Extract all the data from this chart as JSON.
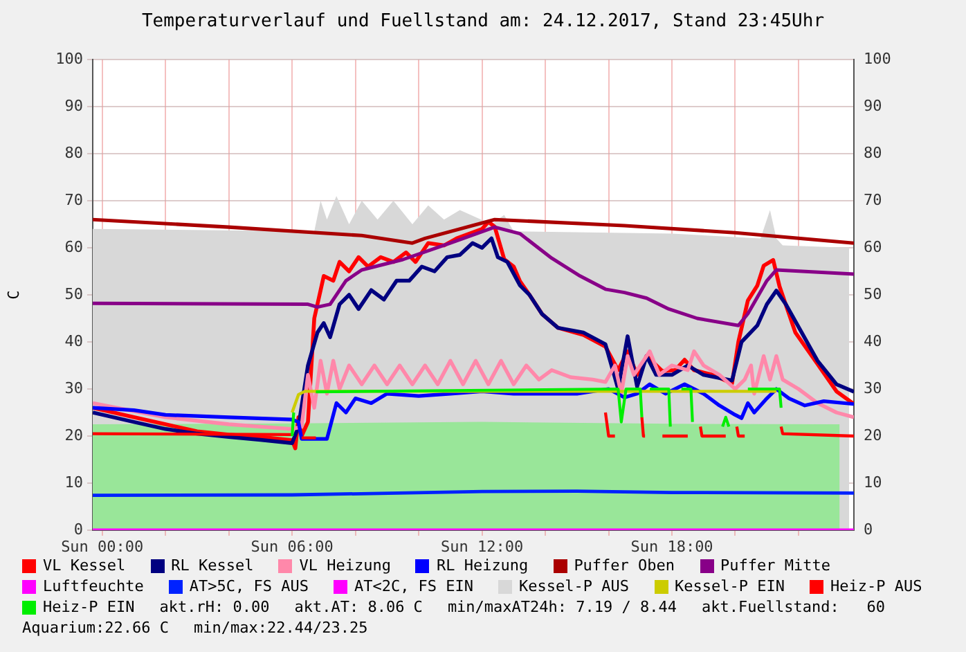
{
  "chart_data": {
    "type": "line",
    "title": "Temperaturverlauf und Fuellstand am: 24.12.2017, Stand 23:45Uhr",
    "ylabel": "C",
    "xlim": [
      "2017-12-23T23:42",
      "2017-12-24T23:45"
    ],
    "xticks": [
      {
        "value": "2017-12-24T00:00",
        "label": "Sun 00:00"
      },
      {
        "value": "2017-12-24T02:00",
        "label": null
      },
      {
        "value": "2017-12-24T04:00",
        "label": null
      },
      {
        "value": "2017-12-24T06:00",
        "label": "Sun 06:00"
      },
      {
        "value": "2017-12-24T08:00",
        "label": null
      },
      {
        "value": "2017-12-24T10:00",
        "label": null
      },
      {
        "value": "2017-12-24T12:00",
        "label": "Sun 12:00"
      },
      {
        "value": "2017-12-24T14:00",
        "label": null
      },
      {
        "value": "2017-12-24T16:00",
        "label": null
      },
      {
        "value": "2017-12-24T18:00",
        "label": "Sun 18:00"
      },
      {
        "value": "2017-12-24T20:00",
        "label": null
      },
      {
        "value": "2017-12-24T22:00",
        "label": null
      }
    ],
    "ylim": [
      0,
      100
    ],
    "yticks": [
      0,
      10,
      20,
      30,
      40,
      50,
      60,
      70,
      80,
      90,
      100
    ],
    "y2lim": [
      0,
      100
    ],
    "y2ticks": [
      0,
      10,
      20,
      30,
      40,
      50,
      60,
      70,
      80,
      90,
      100
    ],
    "grid": true,
    "legend": "bottom",
    "marker": "none",
    "series": [
      {
        "name": "VL Kessel",
        "color": "#ff0000",
        "x": [
          "2017-12-23T23:42",
          "2017-12-24T01:00",
          "2017-12-24T02:00",
          "2017-12-24T03:00",
          "2017-12-24T04:00",
          "2017-12-24T05:00",
          "2017-12-24T06:00",
          "2017-12-24T06:06",
          "2017-12-24T06:12",
          "2017-12-24T06:18",
          "2017-12-24T06:30",
          "2017-12-24T06:42",
          "2017-12-24T07:00",
          "2017-12-24T07:18",
          "2017-12-24T07:30",
          "2017-12-24T07:48",
          "2017-12-24T08:06",
          "2017-12-24T08:24",
          "2017-12-24T08:48",
          "2017-12-24T09:12",
          "2017-12-24T09:36",
          "2017-12-24T09:54",
          "2017-12-24T10:18",
          "2017-12-24T10:48",
          "2017-12-24T11:12",
          "2017-12-24T11:36",
          "2017-12-24T12:00",
          "2017-12-24T12:12",
          "2017-12-24T12:24",
          "2017-12-24T12:42",
          "2017-12-24T13:00",
          "2017-12-24T13:12",
          "2017-12-24T13:30",
          "2017-12-24T13:54",
          "2017-12-24T14:24",
          "2017-12-24T15:12",
          "2017-12-24T15:54",
          "2017-12-24T16:18",
          "2017-12-24T16:36",
          "2017-12-24T16:54",
          "2017-12-24T17:12",
          "2017-12-24T17:42",
          "2017-12-24T18:06",
          "2017-12-24T18:24",
          "2017-12-24T18:42",
          "2017-12-24T19:18",
          "2017-12-24T19:54",
          "2017-12-24T20:06",
          "2017-12-24T20:24",
          "2017-12-24T20:42",
          "2017-12-24T20:54",
          "2017-12-24T21:12",
          "2017-12-24T21:24",
          "2017-12-24T21:54",
          "2017-12-24T22:36",
          "2017-12-24T23:12",
          "2017-12-24T23:45"
        ],
        "values": [
          26,
          24,
          22.5,
          21,
          20.3,
          19.8,
          19.1,
          17.4,
          24,
          20,
          23,
          45,
          54,
          53,
          57,
          55,
          58,
          56,
          58,
          57,
          59,
          57,
          61,
          60.5,
          62,
          63,
          64,
          65.5,
          64.5,
          57.6,
          56,
          52.9,
          50,
          45.9,
          43,
          41.5,
          39,
          34,
          38,
          33,
          37,
          33.8,
          34,
          36.2,
          34,
          33,
          31.2,
          40,
          48.8,
          52,
          56.2,
          57.4,
          51.8,
          42,
          35.3,
          29.5,
          26.8
        ]
      },
      {
        "name": "RL Kessel",
        "color": "#000080",
        "x": [
          "2017-12-23T23:42",
          "2017-12-24T01:00",
          "2017-12-24T02:00",
          "2017-12-24T03:00",
          "2017-12-24T04:00",
          "2017-12-24T05:00",
          "2017-12-24T06:00",
          "2017-12-24T06:12",
          "2017-12-24T06:30",
          "2017-12-24T06:48",
          "2017-12-24T07:00",
          "2017-12-24T07:12",
          "2017-12-24T07:30",
          "2017-12-24T07:48",
          "2017-12-24T08:06",
          "2017-12-24T08:30",
          "2017-12-24T08:54",
          "2017-12-24T09:18",
          "2017-12-24T09:42",
          "2017-12-24T10:06",
          "2017-12-24T10:30",
          "2017-12-24T10:54",
          "2017-12-24T11:18",
          "2017-12-24T11:42",
          "2017-12-24T12:00",
          "2017-12-24T12:18",
          "2017-12-24T12:30",
          "2017-12-24T12:48",
          "2017-12-24T13:12",
          "2017-12-24T13:30",
          "2017-12-24T13:54",
          "2017-12-24T14:24",
          "2017-12-24T15:12",
          "2017-12-24T15:54",
          "2017-12-24T16:18",
          "2017-12-24T16:36",
          "2017-12-24T16:54",
          "2017-12-24T17:12",
          "2017-12-24T17:30",
          "2017-12-24T18:00",
          "2017-12-24T18:30",
          "2017-12-24T19:00",
          "2017-12-24T19:54",
          "2017-12-24T20:12",
          "2017-12-24T20:42",
          "2017-12-24T21:00",
          "2017-12-24T21:18",
          "2017-12-24T21:36",
          "2017-12-24T22:06",
          "2017-12-24T22:36",
          "2017-12-24T23:12",
          "2017-12-24T23:45"
        ],
        "values": [
          25,
          23,
          21.5,
          20.5,
          19.8,
          19.2,
          18.5,
          22,
          35,
          42,
          44,
          41,
          48,
          50,
          47,
          51,
          49,
          53,
          53,
          56,
          55,
          58,
          58.5,
          61,
          60,
          62,
          58,
          57,
          52,
          50,
          45.9,
          43,
          42,
          39.5,
          30,
          41.2,
          30.5,
          37,
          33,
          33,
          35,
          33,
          31.8,
          40,
          43.5,
          48,
          50.9,
          48,
          42,
          36,
          31,
          29.4
        ]
      },
      {
        "name": "VL Heizung",
        "color": "#ff88aa",
        "x": [
          "2017-12-23T23:42",
          "2017-12-24T02:00",
          "2017-12-24T04:00",
          "2017-12-24T06:00",
          "2017-12-24T06:18",
          "2017-12-24T06:30",
          "2017-12-24T06:42",
          "2017-12-24T06:54",
          "2017-12-24T07:06",
          "2017-12-24T07:18",
          "2017-12-24T07:30",
          "2017-12-24T07:48",
          "2017-12-24T08:12",
          "2017-12-24T08:36",
          "2017-12-24T09:00",
          "2017-12-24T09:24",
          "2017-12-24T09:48",
          "2017-12-24T10:12",
          "2017-12-24T10:36",
          "2017-12-24T11:00",
          "2017-12-24T11:24",
          "2017-12-24T11:48",
          "2017-12-24T12:12",
          "2017-12-24T12:36",
          "2017-12-24T13:00",
          "2017-12-24T13:24",
          "2017-12-24T13:48",
          "2017-12-24T14:12",
          "2017-12-24T14:48",
          "2017-12-24T15:30",
          "2017-12-24T15:54",
          "2017-12-24T16:12",
          "2017-12-24T16:24",
          "2017-12-24T16:36",
          "2017-12-24T16:48",
          "2017-12-24T17:06",
          "2017-12-24T17:18",
          "2017-12-24T17:36",
          "2017-12-24T18:00",
          "2017-12-24T18:30",
          "2017-12-24T18:42",
          "2017-12-24T19:00",
          "2017-12-24T19:30",
          "2017-12-24T20:00",
          "2017-12-24T20:18",
          "2017-12-24T20:30",
          "2017-12-24T20:36",
          "2017-12-24T20:54",
          "2017-12-24T21:06",
          "2017-12-24T21:18",
          "2017-12-24T21:30",
          "2017-12-24T22:00",
          "2017-12-24T22:36",
          "2017-12-24T23:12",
          "2017-12-24T23:45"
        ],
        "values": [
          27,
          24,
          22.5,
          21.5,
          22,
          33,
          26,
          36,
          29,
          36,
          30,
          35,
          31,
          35,
          31,
          35,
          31,
          35,
          31,
          36,
          31,
          36,
          31,
          36,
          31,
          35,
          32,
          34,
          32.5,
          32,
          31.5,
          35,
          29,
          37,
          33,
          36,
          38,
          33,
          35,
          34,
          38,
          35,
          33,
          30,
          32,
          35,
          29,
          37,
          32,
          37,
          32,
          30,
          27,
          25,
          24
        ]
      },
      {
        "name": "RL Heizung",
        "color": "#0000ff",
        "x": [
          "2017-12-23T23:42",
          "2017-12-24T01:00",
          "2017-12-24T02:00",
          "2017-12-24T04:00",
          "2017-12-24T06:00",
          "2017-12-24T06:12",
          "2017-12-24T06:18",
          "2017-12-24T07:06",
          "2017-12-24T07:24",
          "2017-12-24T07:42",
          "2017-12-24T08:00",
          "2017-12-24T08:30",
          "2017-12-24T09:00",
          "2017-12-24T10:00",
          "2017-12-24T11:00",
          "2017-12-24T12:00",
          "2017-12-24T13:00",
          "2017-12-24T14:00",
          "2017-12-24T15:00",
          "2017-12-24T16:00",
          "2017-12-24T16:30",
          "2017-12-24T16:54",
          "2017-12-24T17:18",
          "2017-12-24T17:48",
          "2017-12-24T18:24",
          "2017-12-24T19:00",
          "2017-12-24T19:30",
          "2017-12-24T20:00",
          "2017-12-24T20:12",
          "2017-12-24T20:24",
          "2017-12-24T20:36",
          "2017-12-24T21:00",
          "2017-12-24T21:18",
          "2017-12-24T21:42",
          "2017-12-24T22:12",
          "2017-12-24T22:48",
          "2017-12-24T23:45"
        ],
        "values": [
          26,
          25.5,
          24.5,
          24,
          23.5,
          23,
          19.4,
          19.4,
          27,
          25,
          28,
          27,
          29,
          28.5,
          29,
          29.5,
          29,
          29,
          29,
          30,
          28.2,
          29,
          31,
          29,
          31,
          29,
          26.5,
          24.5,
          23.8,
          27,
          25,
          28,
          30,
          28,
          26.5,
          27.4,
          26.8
        ]
      },
      {
        "name": "Puffer Oben",
        "color": "#aa0000",
        "x": [
          "2017-12-23T23:42",
          "2017-12-24T04:00",
          "2017-12-24T08:12",
          "2017-12-24T09:48",
          "2017-12-24T10:12",
          "2017-12-24T12:24",
          "2017-12-24T16:30",
          "2017-12-24T20:00",
          "2017-12-24T23:45"
        ],
        "values": [
          66,
          64.4,
          62.6,
          61,
          62,
          66,
          64.7,
          63.2,
          61
        ]
      },
      {
        "name": "Puffer Mitte",
        "color": "#880088",
        "x": [
          "2017-12-23T23:42",
          "2017-12-24T06:30",
          "2017-12-24T06:48",
          "2017-12-24T07:12",
          "2017-12-24T07:42",
          "2017-12-24T08:12",
          "2017-12-24T09:30",
          "2017-12-24T11:00",
          "2017-12-24T12:24",
          "2017-12-24T13:12",
          "2017-12-24T14:12",
          "2017-12-24T15:06",
          "2017-12-24T15:54",
          "2017-12-24T16:30",
          "2017-12-24T17:12",
          "2017-12-24T17:54",
          "2017-12-24T18:48",
          "2017-12-24T20:06",
          "2017-12-24T20:24",
          "2017-12-24T21:00",
          "2017-12-24T21:18",
          "2017-12-24T23:45"
        ],
        "values": [
          48.2,
          48,
          47.4,
          48,
          53,
          55.3,
          57.5,
          61,
          64.4,
          63,
          57.8,
          54,
          51.2,
          50.5,
          49.3,
          47,
          45,
          43.5,
          46,
          53,
          55.3,
          54.4
        ]
      },
      {
        "name": "Luftfeuchte",
        "color": "#ff00ff",
        "x": [
          "2017-12-23T23:42",
          "2017-12-24T23:45"
        ],
        "values": [
          0,
          0
        ]
      },
      {
        "name": "AT>5C, FS AUS",
        "color": "#0022ff",
        "x": [
          "2017-12-23T23:42",
          "2017-12-24T06:00",
          "2017-12-24T12:00",
          "2017-12-24T15:00",
          "2017-12-24T18:00",
          "2017-12-24T23:45"
        ],
        "values": [
          7.4,
          7.5,
          8.2,
          8.3,
          8,
          7.9
        ]
      },
      {
        "name": "AT<2C, FS EIN",
        "color": "#ff00ff"
      },
      {
        "name": "Kessel-P AUS",
        "type": "area",
        "color": "#d8d8d8",
        "x": [
          "2017-12-23T23:42",
          "2017-12-24T06:42",
          "2017-12-24T06:54",
          "2017-12-24T07:06",
          "2017-12-24T07:24",
          "2017-12-24T07:48",
          "2017-12-24T08:12",
          "2017-12-24T08:42",
          "2017-12-24T09:12",
          "2017-12-24T09:48",
          "2017-12-24T10:18",
          "2017-12-24T10:48",
          "2017-12-24T11:18",
          "2017-12-24T12:18",
          "2017-12-24T12:42",
          "2017-12-24T13:00",
          "2017-12-24T18:00",
          "2017-12-24T20:48",
          "2017-12-24T21:06",
          "2017-12-24T21:18",
          "2017-12-24T21:30",
          "2017-12-24T23:36"
        ],
        "values": [
          64,
          63.5,
          70,
          66,
          71,
          65,
          70,
          66,
          70,
          65,
          69,
          66,
          68,
          65,
          67,
          63.5,
          63,
          62,
          68,
          62,
          60.5,
          60
        ]
      },
      {
        "name": "Kessel-P EIN",
        "color": "#cccc00",
        "x": [
          "2017-12-24T06:00",
          "2017-12-24T06:12",
          "2017-12-24T06:24",
          "2017-12-24T21:18"
        ],
        "values": [
          25,
          28.8,
          29.5,
          29.5
        ]
      },
      {
        "name": "Heiz-P AUS",
        "color": "#ff0000",
        "x": [
          "2017-12-23T23:42",
          "2017-12-24T06:00",
          "2017-12-24T06:03",
          "2017-12-24T06:18",
          "2017-12-24T06:45",
          "2017-12-24T06:48",
          "2017-12-24T15:54",
          "2017-12-24T16:00",
          "2017-12-24T16:12",
          "2017-12-24T16:15",
          "2017-12-24T17:03",
          "2017-12-24T17:06",
          "2017-12-24T17:09",
          "2017-12-24T17:12",
          "2017-12-24T17:42",
          "2017-12-24T18:30",
          "2017-12-24T18:33",
          "2017-12-24T18:54",
          "2017-12-24T18:57",
          "2017-12-24T19:42",
          "2017-12-24T19:45",
          "2017-12-24T20:03",
          "2017-12-24T20:06",
          "2017-12-24T20:18",
          "2017-12-24T20:21",
          "2017-12-24T21:27",
          "2017-12-24T21:30",
          "2017-12-24T23:45"
        ],
        "values": [
          20.5,
          20.3,
          null,
          19.6,
          19.6,
          null,
          25,
          20,
          20,
          null,
          24,
          20,
          20,
          null,
          20,
          20,
          null,
          22,
          20,
          20,
          null,
          22,
          20,
          20,
          null,
          22,
          20.5,
          20
        ]
      },
      {
        "name": "Heiz-P EIN",
        "color": "#00ee00",
        "x": [
          "2017-12-24T06:00",
          "2017-12-24T06:03",
          "2017-12-24T06:06",
          "2017-12-24T06:45",
          "2017-12-24T16:18",
          "2017-12-24T16:24",
          "2017-12-24T16:33",
          "2017-12-24T17:00",
          "2017-12-24T17:03",
          "2017-12-24T17:06",
          "2017-12-24T17:18",
          "2017-12-24T17:54",
          "2017-12-24T17:57",
          "2017-12-24T18:00",
          "2017-12-24T18:18",
          "2017-12-24T18:36",
          "2017-12-24T18:39",
          "2017-12-24T18:42",
          "2017-12-24T19:36",
          "2017-12-24T19:42",
          "2017-12-24T19:48",
          "2017-12-24T19:51",
          "2017-12-24T20:24",
          "2017-12-24T21:24",
          "2017-12-24T21:27"
        ],
        "values": [
          20,
          25,
          null,
          29.4,
          30,
          23,
          30,
          30,
          24,
          null,
          30,
          30,
          22,
          null,
          30,
          30,
          23,
          null,
          22,
          24,
          22,
          null,
          30,
          30,
          26
        ]
      },
      {
        "type": "area",
        "color": "#99e699",
        "x": [
          "2017-12-23T23:42",
          "2017-12-24T06:00",
          "2017-12-24T12:00",
          "2017-12-24T18:00",
          "2017-12-24T23:18"
        ],
        "values": [
          22.5,
          22.7,
          23,
          22.6,
          22.5
        ]
      }
    ],
    "annotations": [
      "akt.rH: 0.00",
      "akt.AT: 8.06 C",
      "min/maxAT24h: 7.19 / 8.44",
      "akt.Fuellstand:   60",
      "Aquarium:22.66 C",
      "min/max:22.44/23.25"
    ]
  }
}
